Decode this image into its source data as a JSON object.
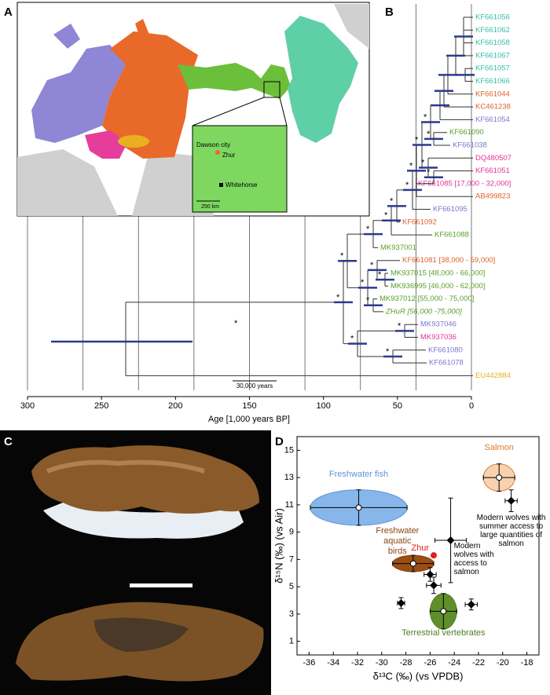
{
  "panel_labels": [
    "A",
    "B",
    "C",
    "D"
  ],
  "map": {
    "labels": [
      "Dawson city",
      "Zhur",
      "Whitehorse"
    ],
    "scale": "250 km"
  },
  "chart_data": [
    {
      "type": "tree",
      "taxa": [
        {
          "name": "KF661056",
          "color": "#36bfa6"
        },
        {
          "name": "KF661062",
          "color": "#36bfa6"
        },
        {
          "name": "KF661058",
          "color": "#36bfa6"
        },
        {
          "name": "KF661067",
          "color": "#36bfa6"
        },
        {
          "name": "KF661057",
          "color": "#36bfa6"
        },
        {
          "name": "KF661066",
          "color": "#36bfa6"
        },
        {
          "name": "KF661044",
          "color": "#e0622a"
        },
        {
          "name": "KC461238",
          "color": "#e0622a"
        },
        {
          "name": "KF661054",
          "color": "#7b76d0"
        },
        {
          "name": "KF661090",
          "color": "#5aa02c"
        },
        {
          "name": "KF661038",
          "color": "#7b76d0"
        },
        {
          "name": "DQ480507",
          "color": "#e0329a"
        },
        {
          "name": "KF661051",
          "color": "#e0329a"
        },
        {
          "name": "KF661085 [17,000 - 32,000]",
          "color": "#e0329a"
        },
        {
          "name": "AB499823",
          "color": "#e0622a"
        },
        {
          "name": "KF661095",
          "color": "#7b76d0"
        },
        {
          "name": "KF661092",
          "color": "#e0622a"
        },
        {
          "name": "KF661088",
          "color": "#5aa02c"
        },
        {
          "name": "MK937001",
          "color": "#5aa02c"
        },
        {
          "name": "KF661081 [38,000 - 59,000]",
          "color": "#e0622a"
        },
        {
          "name": "MK937015 [48,000 - 66,000]",
          "color": "#5aa02c"
        },
        {
          "name": "MK936995 [46,000 - 62,000]",
          "color": "#5aa02c"
        },
        {
          "name": "MK937012 [55,000 - 75,000]",
          "color": "#5aa02c"
        },
        {
          "name": "ZHuR [56,000 -75,000]",
          "color": "#5aa02c",
          "style": "italic"
        },
        {
          "name": "MK937046",
          "color": "#7b76d0"
        },
        {
          "name": "MK937036",
          "color": "#e0329a"
        },
        {
          "name": "KF661080",
          "color": "#7b76d0"
        },
        {
          "name": "KF661078",
          "color": "#7b76d0"
        },
        {
          "name": "EU442884",
          "color": "#e8b020"
        }
      ],
      "support_marker": "*",
      "xlim": [
        300,
        0
      ],
      "xticks": [
        300,
        250,
        200,
        150,
        100,
        50,
        0
      ],
      "xgrid": [
        300,
        262.5,
        225,
        187.5,
        150,
        112.5,
        75,
        37.5,
        0
      ],
      "xlabel": "Age [1,000 years BP]",
      "scale_bar": "30,000 years",
      "branch_color": "#333",
      "interval_color": "#2c3a8c"
    },
    {
      "type": "scatter",
      "xlim": [
        -37,
        -17
      ],
      "ylim": [
        0,
        16
      ],
      "xticks": [
        -36,
        -34,
        -32,
        -30,
        -28,
        -26,
        -24,
        -22,
        -20,
        -18
      ],
      "yticks": [
        1,
        3,
        5,
        7,
        9,
        11,
        13,
        15
      ],
      "xlabel": "δ¹³C (‰) (vs VPDB)",
      "ylabel": "δ¹⁵N (‰) (vs Air)",
      "groups": [
        {
          "name": "Freshwater fish",
          "color": "#5b95d6",
          "fill": "#86b6ea",
          "x": -31.9,
          "y": 10.8,
          "xerr": 4.0,
          "yerr": 1.3
        },
        {
          "name": "Salmon",
          "color": "#e07a2a",
          "fill": "#f8d2b0",
          "x": -20.3,
          "y": 13.0,
          "xerr": 1.3,
          "yerr": 1.0
        },
        {
          "name": "Freshwater aquatic birds",
          "color": "#8b4513",
          "fill": "#9a4e12",
          "x": -27.4,
          "y": 6.7,
          "xerr": 1.7,
          "yerr": 0.6
        },
        {
          "name": "Terrestrial vertebrates",
          "color": "#4f7f20",
          "fill": "#5f8f2a",
          "x": -24.9,
          "y": 3.2,
          "xerr": 1.1,
          "yerr": 1.3
        }
      ],
      "sample": {
        "name": "Zhur",
        "color": "#e02020",
        "x": -25.7,
        "y": 7.3
      },
      "wolves": [
        {
          "x": -24.3,
          "y": 8.4,
          "xerr": 1.3,
          "yerr": 3.1
        },
        {
          "x": -19.3,
          "y": 11.3,
          "xerr": 0.5,
          "yerr": 0.8
        },
        {
          "x": -26.0,
          "y": 5.9,
          "xerr": 0.5,
          "yerr": 0.5
        },
        {
          "x": -25.7,
          "y": 5.1,
          "xerr": 0.6,
          "yerr": 0.6
        },
        {
          "x": -28.4,
          "y": 3.8,
          "xerr": 0.3,
          "yerr": 0.4
        },
        {
          "x": -22.6,
          "y": 3.7,
          "xerr": 0.5,
          "yerr": 0.4
        }
      ],
      "annotations": [
        "Modern wolves with access to salmon",
        "Modern wolves with summer access to large quantities of salmon"
      ]
    }
  ]
}
